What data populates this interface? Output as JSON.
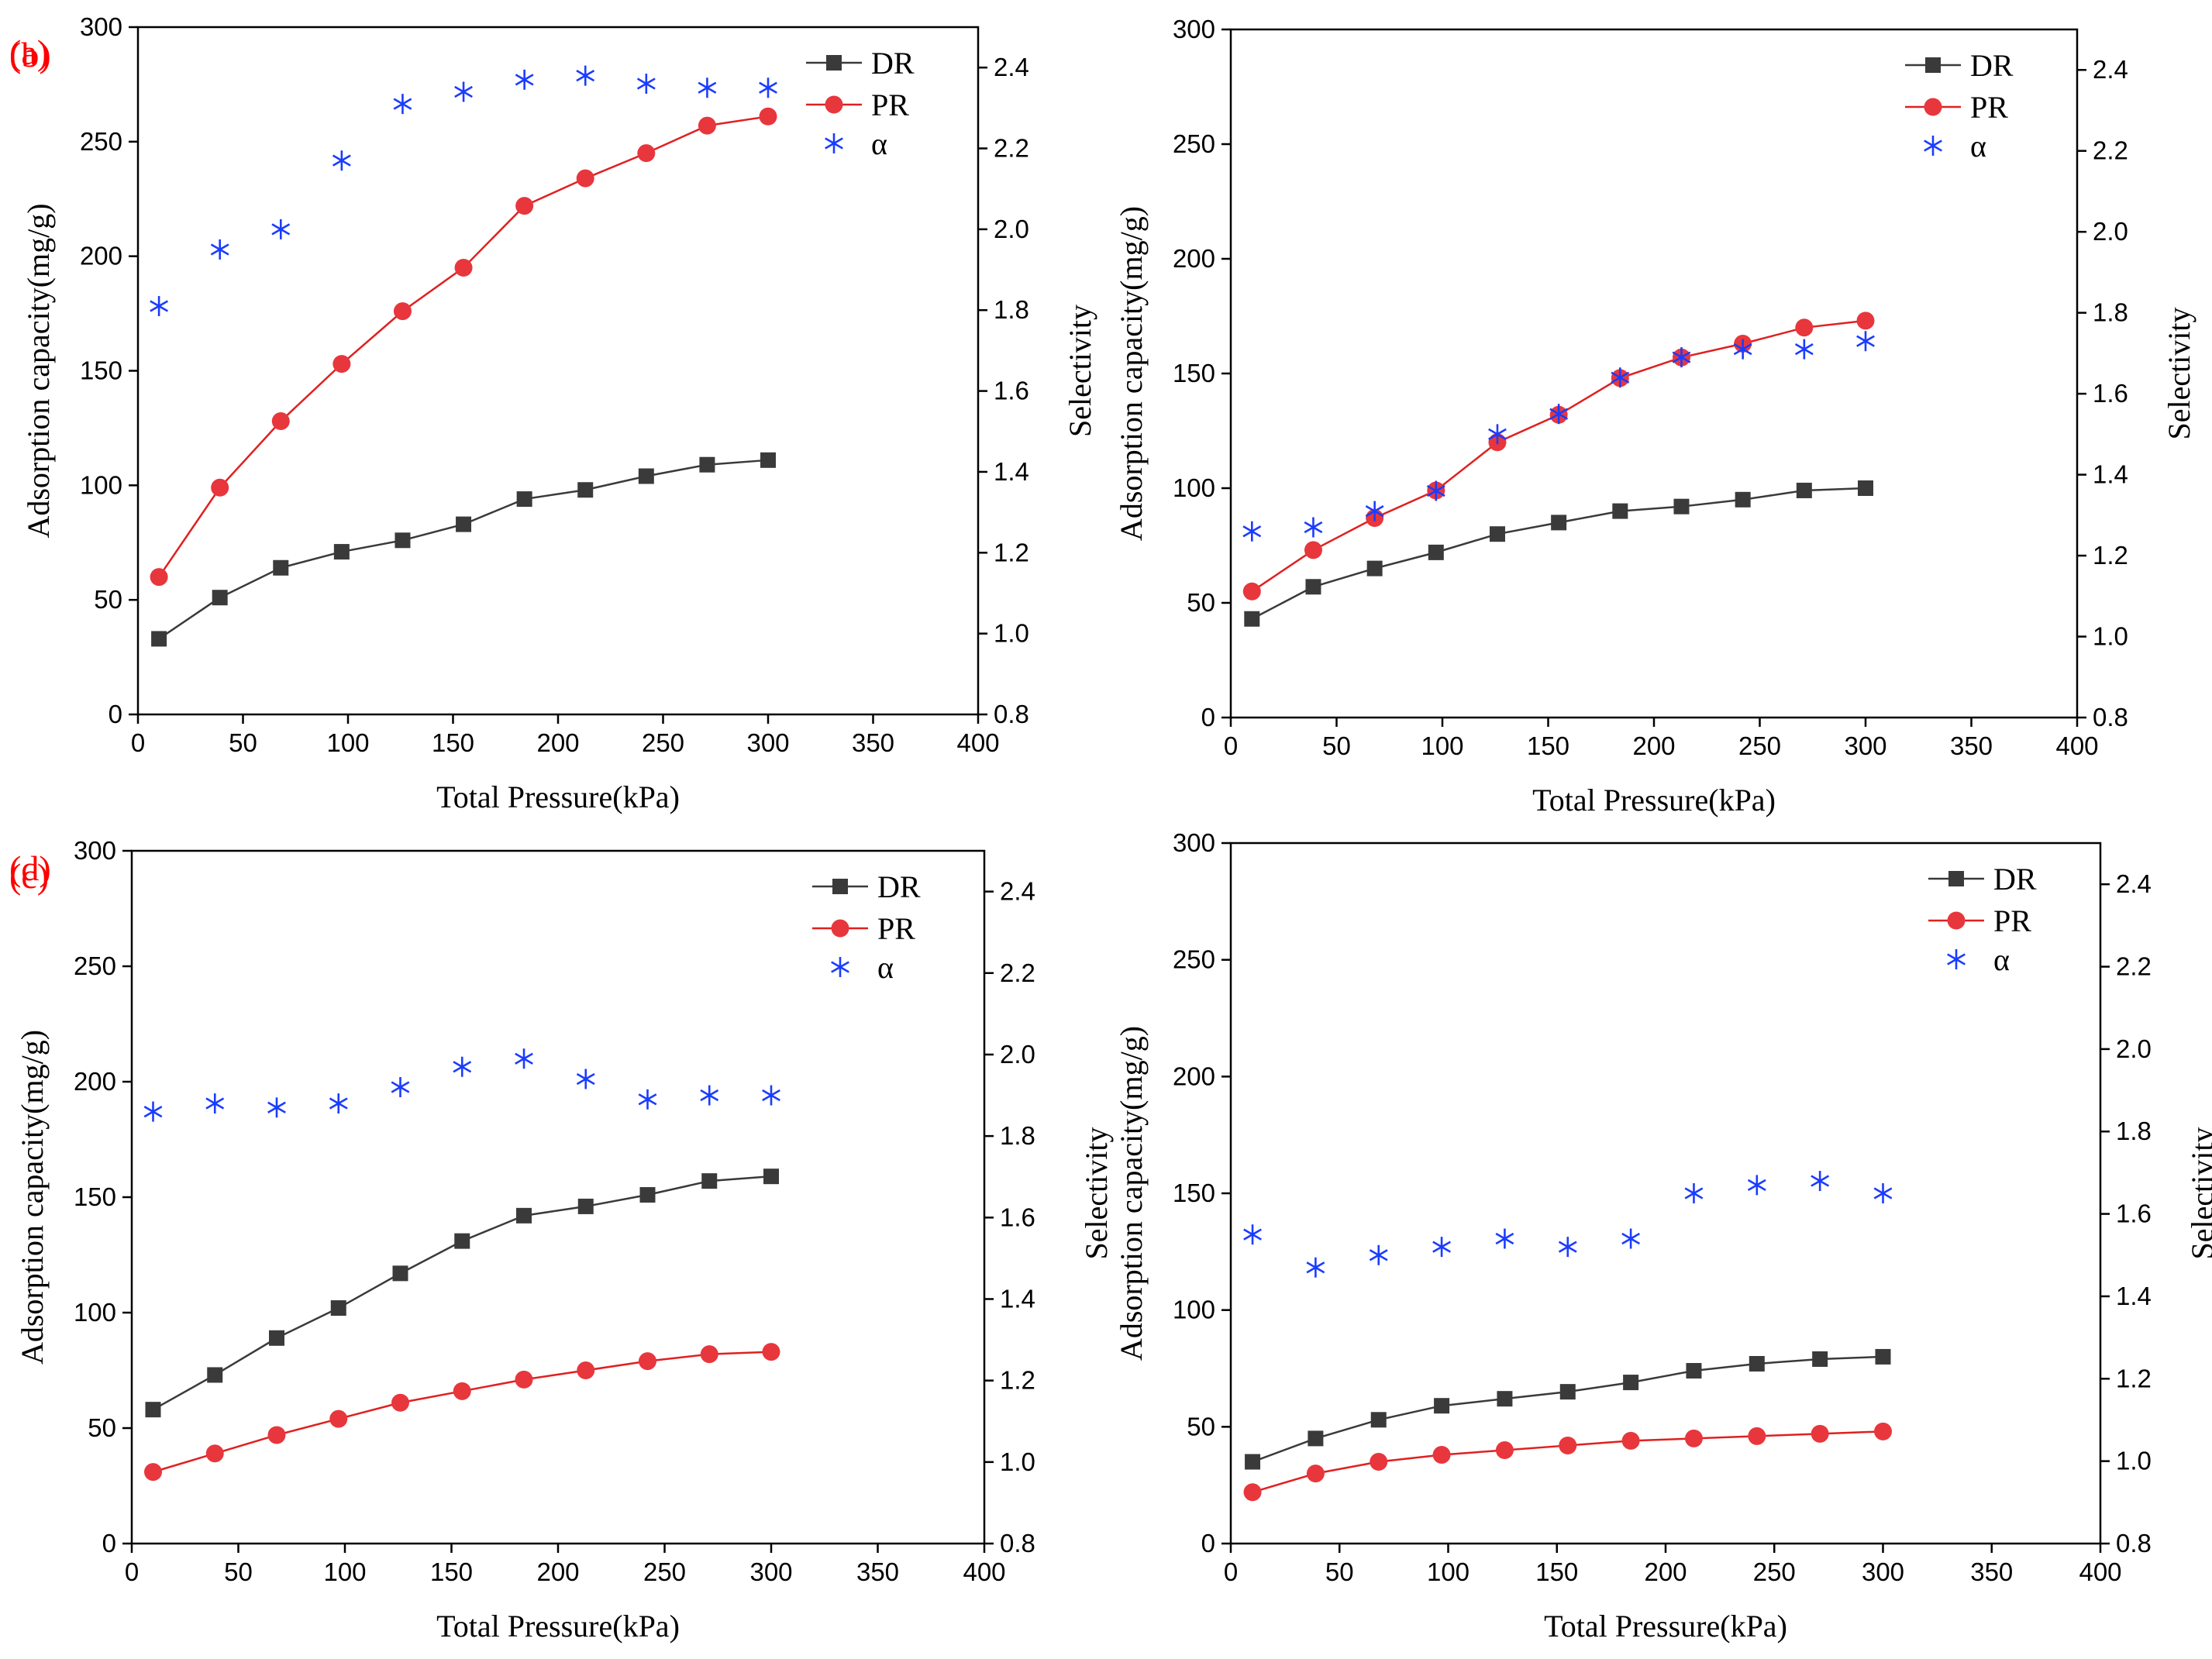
{
  "figure": {
    "name": "adsorption-capacity-selectivity-figure"
  },
  "colors": {
    "DR": "#3a3a3a",
    "PR": "#e8363d",
    "PR_line": "#e02020",
    "alpha": "#1a3cff",
    "panel_label": "#ff0000",
    "axis": "#000000"
  },
  "chart_data": [
    {
      "panel": "(a)",
      "type": "line",
      "xlabel": "Total Pressure(kPa)",
      "ylabel": "Adsorption capacity(mg/g)",
      "y2label": "Selectivity",
      "xlim": [
        0,
        400
      ],
      "ylim": [
        0,
        300
      ],
      "y2lim": [
        0.8,
        2.5
      ],
      "xticks": [
        0,
        50,
        100,
        150,
        200,
        250,
        300,
        350,
        400
      ],
      "yticks": [
        0,
        50,
        100,
        150,
        200,
        250,
        300
      ],
      "y2ticks": [
        0.8,
        1.0,
        1.2,
        1.4,
        1.6,
        1.8,
        2.0,
        2.2,
        2.4
      ],
      "x": [
        10,
        39,
        68,
        97,
        126,
        155,
        184,
        213,
        242,
        271,
        300
      ],
      "series": [
        {
          "name": "DR",
          "axis": "left",
          "values": [
            33,
            51,
            64,
            71,
            76,
            83,
            94,
            98,
            104,
            109,
            111
          ]
        },
        {
          "name": "PR",
          "axis": "left",
          "values": [
            60,
            99,
            128,
            153,
            176,
            195,
            222,
            234,
            245,
            257,
            261
          ]
        },
        {
          "name": "α",
          "axis": "right",
          "values": [
            1.81,
            1.95,
            2.0,
            2.17,
            2.31,
            2.34,
            2.37,
            2.38,
            2.36,
            2.35,
            2.35
          ]
        }
      ]
    },
    {
      "panel": "(b)",
      "type": "line",
      "xlabel": "Total Pressure(kPa)",
      "ylabel": "Adsorption capacity(mg/g)",
      "y2label": "Selectivity",
      "xlim": [
        0,
        400
      ],
      "ylim": [
        0,
        300
      ],
      "y2lim": [
        0.8,
        2.5
      ],
      "xticks": [
        0,
        50,
        100,
        150,
        200,
        250,
        300,
        350,
        400
      ],
      "yticks": [
        0,
        50,
        100,
        150,
        200,
        250,
        300
      ],
      "y2ticks": [
        0.8,
        1.0,
        1.2,
        1.4,
        1.6,
        1.8,
        2.0,
        2.2,
        2.4
      ],
      "x": [
        10,
        39,
        68,
        97,
        126,
        155,
        184,
        213,
        242,
        271,
        300
      ],
      "series": [
        {
          "name": "DR",
          "axis": "left",
          "values": [
            43,
            57,
            65,
            72,
            80,
            85,
            90,
            92,
            95,
            99,
            100
          ]
        },
        {
          "name": "PR",
          "axis": "left",
          "values": [
            55,
            73,
            87,
            99,
            120,
            132,
            148,
            157,
            163,
            170,
            173
          ]
        },
        {
          "name": "α",
          "axis": "right",
          "values": [
            1.26,
            1.27,
            1.31,
            1.36,
            1.5,
            1.55,
            1.64,
            1.69,
            1.71,
            1.71,
            1.73
          ]
        }
      ]
    },
    {
      "panel": "(c)",
      "type": "line",
      "xlabel": "Total Pressure(kPa)",
      "ylabel": "Adsorption capacity(mg/g)",
      "y2label": "",
      "xlim": [
        0,
        400
      ],
      "ylim": [
        0,
        300
      ],
      "y2lim": [
        0.8,
        2.5
      ],
      "xticks": [
        0,
        50,
        100,
        150,
        200,
        250,
        300,
        350,
        400
      ],
      "yticks": [
        0,
        50,
        100,
        150,
        200,
        250,
        300
      ],
      "y2ticks": [
        0.8,
        1.0,
        1.2,
        1.4,
        1.6,
        1.8,
        2.0,
        2.2,
        2.4
      ],
      "x": [
        10,
        39,
        68,
        97,
        126,
        155,
        184,
        213,
        242,
        271,
        300
      ],
      "series": [
        {
          "name": "DR",
          "axis": "left",
          "values": [
            58,
            73,
            89,
            102,
            117,
            131,
            142,
            146,
            151,
            157,
            159
          ]
        },
        {
          "name": "PR",
          "axis": "left",
          "values": [
            31,
            39,
            47,
            54,
            61,
            66,
            71,
            75,
            79,
            82,
            83
          ]
        },
        {
          "name": "α",
          "axis": "right",
          "values": [
            1.86,
            1.88,
            1.87,
            1.88,
            1.92,
            1.97,
            1.99,
            1.94,
            1.89,
            1.9,
            1.9
          ]
        }
      ]
    },
    {
      "panel": "(d)",
      "type": "line",
      "xlabel": "Total Pressure(kPa)",
      "ylabel": "Adsorption capacity(mg/g)",
      "ylabel_top": "Selectivity",
      "y2label": "Selectivity",
      "xlim": [
        0,
        400
      ],
      "ylim": [
        0,
        300
      ],
      "y2lim": [
        0.8,
        2.5
      ],
      "xticks": [
        0,
        50,
        100,
        150,
        200,
        250,
        300,
        350,
        400
      ],
      "yticks": [
        0,
        50,
        100,
        150,
        200,
        250,
        300
      ],
      "y2ticks": [
        0.8,
        1.0,
        1.2,
        1.4,
        1.6,
        1.8,
        2.0,
        2.2,
        2.4
      ],
      "x": [
        10,
        39,
        68,
        97,
        126,
        155,
        184,
        213,
        242,
        271,
        300
      ],
      "series": [
        {
          "name": "DR",
          "axis": "left",
          "values": [
            35,
            45,
            53,
            59,
            62,
            65,
            69,
            74,
            77,
            79,
            80
          ]
        },
        {
          "name": "PR",
          "axis": "left",
          "values": [
            22,
            30,
            35,
            38,
            40,
            42,
            44,
            45,
            46,
            47,
            48
          ]
        },
        {
          "name": "α",
          "axis": "right",
          "values": [
            1.55,
            1.47,
            1.5,
            1.52,
            1.54,
            1.52,
            1.54,
            1.65,
            1.67,
            1.68,
            1.65
          ]
        }
      ]
    }
  ]
}
